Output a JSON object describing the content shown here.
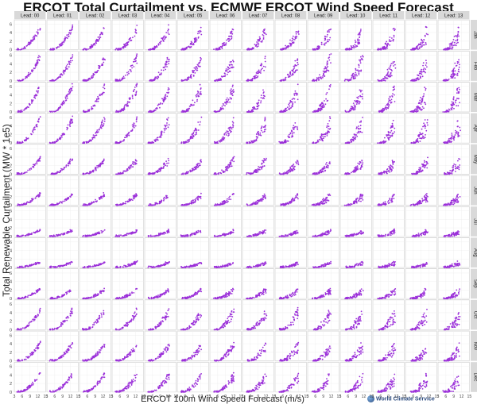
{
  "chart_data": {
    "type": "scatter",
    "title": "ERCOT Total Curtailment vs. ECMWF ERCOT Wind Speed Forecast",
    "xlabel": "ERCOT 100m Wind Speed Forecast (m/s)",
    "ylabel": "Total Renewable Curtailment (MW * 1e5)",
    "column_facets": [
      "Lead: 00",
      "Lead: 01",
      "Lead: 02",
      "Lead: 03",
      "Lead: 04",
      "Lead: 05",
      "Lead: 06",
      "Lead: 07",
      "Lead: 08",
      "Lead: 09",
      "Lead: 10",
      "Lead: 11",
      "Lead: 12",
      "Lead: 13"
    ],
    "row_facets": [
      "Jan",
      "Feb",
      "Mar",
      "Apr",
      "May",
      "Jun",
      "Jul",
      "Aug",
      "Sep",
      "Oct",
      "Nov",
      "Dec"
    ],
    "x_ticks": [
      3,
      6,
      9,
      12,
      15
    ],
    "y_ticks": [
      0,
      2,
      4,
      6
    ],
    "xlim": [
      3,
      15
    ],
    "ylim": [
      0,
      7
    ],
    "marker_color": "#9b30d9",
    "grid": true,
    "row_max_curtailment": [
      5.5,
      6.0,
      6.5,
      6.2,
      3.8,
      2.8,
      1.5,
      1.3,
      2.4,
      5.0,
      4.2,
      4.5
    ],
    "points_per_panel": 60
  },
  "logo_text": "World Climate Service"
}
